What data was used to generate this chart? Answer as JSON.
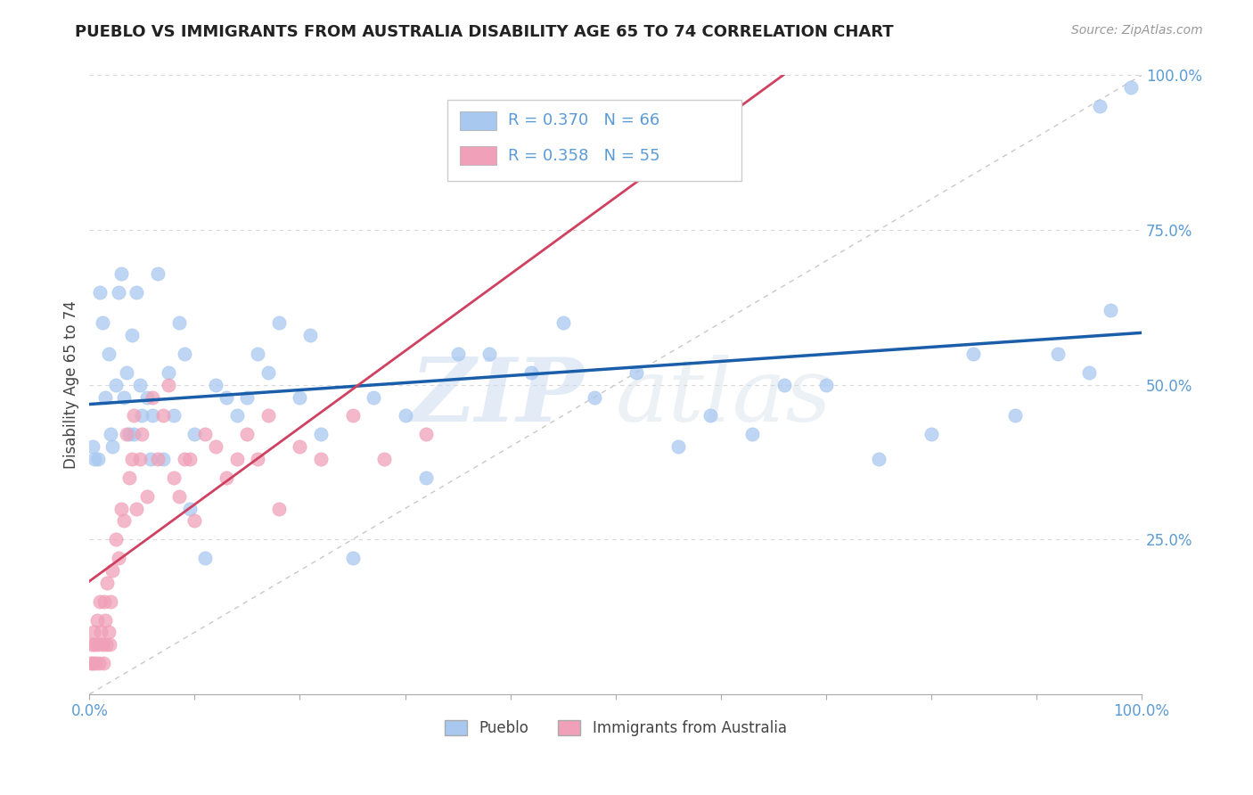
{
  "title": "PUEBLO VS IMMIGRANTS FROM AUSTRALIA DISABILITY AGE 65 TO 74 CORRELATION CHART",
  "source_text": "Source: ZipAtlas.com",
  "ylabel": "Disability Age 65 to 74",
  "watermark_zip": "ZIP",
  "watermark_atlas": "atlas",
  "legend_r1": "R = 0.370",
  "legend_n1": "N = 66",
  "legend_r2": "R = 0.358",
  "legend_n2": "N = 55",
  "pueblo_color": "#a8c8f0",
  "immigrants_color": "#f0a0b8",
  "pueblo_line_color": "#1a5eaa",
  "immigrants_line_color": "#d04060",
  "diagonal_color": "#c8c8c8",
  "background_color": "#ffffff",
  "xlim": [
    0.0,
    1.0
  ],
  "ylim": [
    0.0,
    1.0
  ],
  "pueblo_x": [
    0.003,
    0.005,
    0.008,
    0.01,
    0.012,
    0.015,
    0.018,
    0.02,
    0.022,
    0.025,
    0.028,
    0.03,
    0.033,
    0.035,
    0.038,
    0.04,
    0.042,
    0.045,
    0.048,
    0.05,
    0.055,
    0.058,
    0.06,
    0.065,
    0.07,
    0.075,
    0.08,
    0.085,
    0.09,
    0.095,
    0.1,
    0.11,
    0.12,
    0.13,
    0.14,
    0.15,
    0.16,
    0.17,
    0.18,
    0.2,
    0.21,
    0.22,
    0.25,
    0.27,
    0.3,
    0.32,
    0.35,
    0.38,
    0.42,
    0.45,
    0.48,
    0.52,
    0.56,
    0.59,
    0.63,
    0.66,
    0.7,
    0.75,
    0.8,
    0.84,
    0.88,
    0.92,
    0.95,
    0.96,
    0.97,
    0.99
  ],
  "pueblo_y": [
    0.4,
    0.38,
    0.38,
    0.65,
    0.6,
    0.48,
    0.55,
    0.42,
    0.4,
    0.5,
    0.65,
    0.68,
    0.48,
    0.52,
    0.42,
    0.58,
    0.42,
    0.65,
    0.5,
    0.45,
    0.48,
    0.38,
    0.45,
    0.68,
    0.38,
    0.52,
    0.45,
    0.6,
    0.55,
    0.3,
    0.42,
    0.22,
    0.5,
    0.48,
    0.45,
    0.48,
    0.55,
    0.52,
    0.6,
    0.48,
    0.58,
    0.42,
    0.22,
    0.48,
    0.45,
    0.35,
    0.55,
    0.55,
    0.52,
    0.6,
    0.48,
    0.52,
    0.4,
    0.45,
    0.42,
    0.5,
    0.5,
    0.38,
    0.42,
    0.55,
    0.45,
    0.55,
    0.52,
    0.95,
    0.62,
    0.98
  ],
  "immigrants_x": [
    0.001,
    0.002,
    0.003,
    0.004,
    0.005,
    0.006,
    0.007,
    0.008,
    0.009,
    0.01,
    0.011,
    0.012,
    0.013,
    0.014,
    0.015,
    0.016,
    0.017,
    0.018,
    0.019,
    0.02,
    0.022,
    0.025,
    0.028,
    0.03,
    0.033,
    0.035,
    0.038,
    0.04,
    0.042,
    0.045,
    0.048,
    0.05,
    0.055,
    0.06,
    0.065,
    0.07,
    0.075,
    0.08,
    0.085,
    0.09,
    0.095,
    0.1,
    0.11,
    0.12,
    0.13,
    0.14,
    0.15,
    0.16,
    0.17,
    0.18,
    0.2,
    0.22,
    0.25,
    0.28,
    0.32
  ],
  "immigrants_y": [
    0.05,
    0.08,
    0.05,
    0.1,
    0.08,
    0.05,
    0.12,
    0.08,
    0.05,
    0.15,
    0.1,
    0.08,
    0.05,
    0.15,
    0.12,
    0.08,
    0.18,
    0.1,
    0.08,
    0.15,
    0.2,
    0.25,
    0.22,
    0.3,
    0.28,
    0.42,
    0.35,
    0.38,
    0.45,
    0.3,
    0.38,
    0.42,
    0.32,
    0.48,
    0.38,
    0.45,
    0.5,
    0.35,
    0.32,
    0.38,
    0.38,
    0.28,
    0.42,
    0.4,
    0.35,
    0.38,
    0.42,
    0.38,
    0.45,
    0.3,
    0.4,
    0.38,
    0.45,
    0.38,
    0.42
  ],
  "pueblo_trend_x0": 0.0,
  "pueblo_trend_y0": 0.385,
  "pueblo_trend_x1": 1.0,
  "pueblo_trend_y1": 0.515,
  "immigrants_trend_x0": 0.0,
  "immigrants_trend_y0": 0.1,
  "immigrants_trend_x1": 0.17,
  "immigrants_trend_y1": 0.385,
  "xtick_positions": [
    0.0,
    0.1,
    0.2,
    0.3,
    0.4,
    0.5,
    0.6,
    0.7,
    0.8,
    0.9,
    1.0
  ],
  "ytick_positions": [
    0.0,
    0.25,
    0.5,
    0.75,
    1.0
  ],
  "ytick_labels": [
    "",
    "25.0%",
    "50.0%",
    "75.0%",
    "100.0%"
  ],
  "xtick_labels_show": {
    "0.0": "0.0%",
    "1.0": "100.0%"
  },
  "grid_color": "#d8d8d8",
  "tick_color": "#5b9bd5"
}
